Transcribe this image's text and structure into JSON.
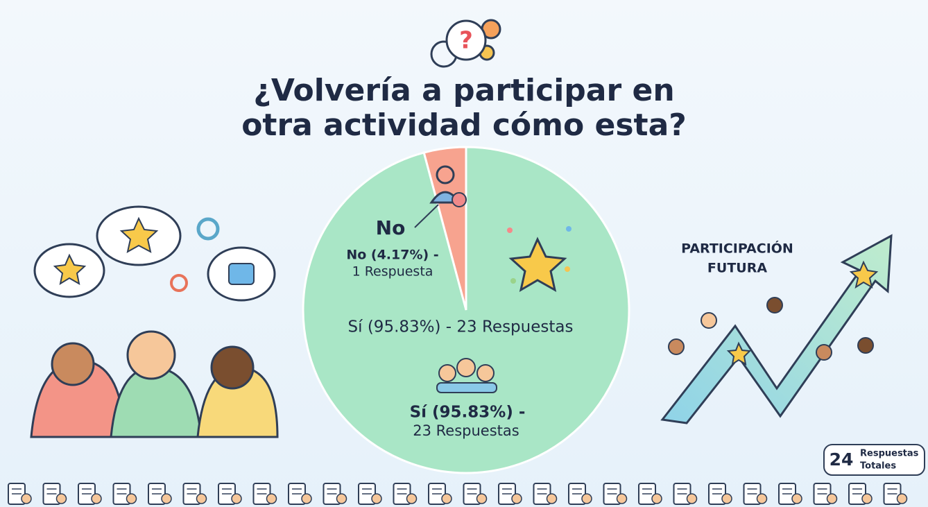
{
  "chart_data": {
    "type": "pie",
    "title_lines": [
      "¿Volvería a participar en",
      "otra actividad cómo esta?"
    ],
    "values": [
      4.17,
      95.83
    ],
    "colors": [
      "#f7a38f",
      "#a9e6c6"
    ],
    "slice_name": "No",
    "value_labels": [
      "No (4.17%) -",
      "Sí (95.83%) -"
    ],
    "count_labels": [
      "1 Respuesta",
      "23 Respuestas"
    ],
    "center_label": "Sí (95.83%) - 23 Respuestas",
    "side_title_lines": [
      "PARTICIPACIÓN",
      "FUTURA"
    ],
    "total": 24,
    "total_label_lines": [
      "Respuestas",
      "Totales"
    ]
  }
}
